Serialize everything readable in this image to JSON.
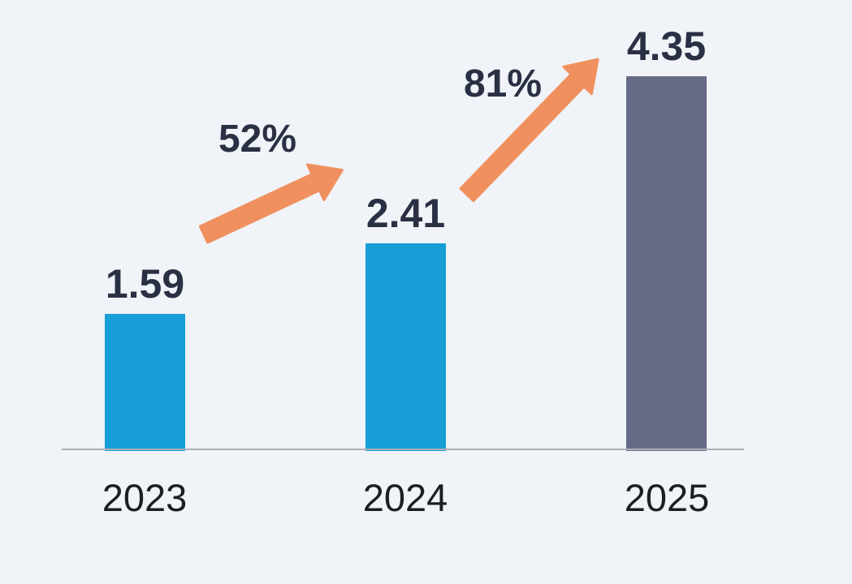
{
  "chart_data": {
    "type": "bar",
    "categories": [
      "2023",
      "2024",
      "2025"
    ],
    "values": [
      1.59,
      2.41,
      4.35
    ],
    "value_labels": [
      "1.59",
      "2.41",
      "4.35"
    ],
    "bar_colors": [
      "#189ed6",
      "#189ed6",
      "#656b85"
    ],
    "growth_arrows": [
      {
        "label": "52%",
        "from": "2023",
        "to": "2024"
      },
      {
        "label": "81%",
        "from": "2024",
        "to": "2025"
      }
    ],
    "title": "",
    "xlabel": "",
    "ylabel": "",
    "ylim": [
      0,
      4.35
    ],
    "grid": false,
    "legend": false,
    "colors": {
      "arrow": "#f0905f",
      "value_label": "#2a3044",
      "pct_label": "#2a3044",
      "axis_label": "#1b1e24",
      "axis_line": "#acafb5",
      "background": "#f0f3f7"
    }
  }
}
